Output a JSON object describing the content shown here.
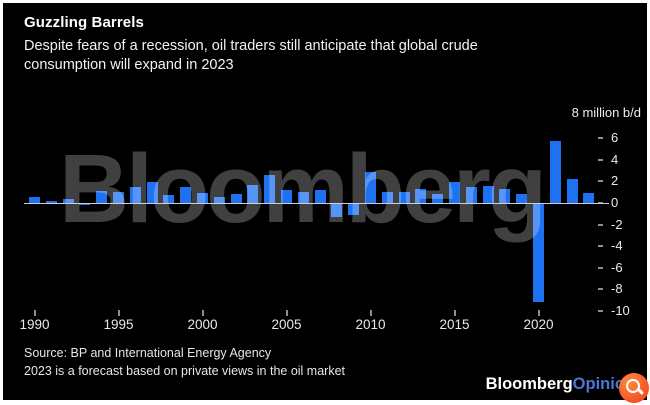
{
  "header": {
    "title": "Guzzling Barrels",
    "subtitle": [
      "Despite fears of a recession, oil traders still anticipate that global crude",
      "consumption will expand in 2023"
    ]
  },
  "chart_data": {
    "type": "bar",
    "title": "Guzzling Barrels",
    "subtitle": "Despite fears of a recession, oil traders still anticipate that global crude consumption will expand in 2023",
    "ylabel": "million b/d",
    "unit_label": "8 million b/d",
    "x": [
      1990,
      1991,
      1992,
      1993,
      1994,
      1995,
      1996,
      1997,
      1998,
      1999,
      2000,
      2001,
      2002,
      2003,
      2004,
      2005,
      2006,
      2007,
      2008,
      2009,
      2010,
      2011,
      2012,
      2013,
      2014,
      2015,
      2016,
      2017,
      2018,
      2019,
      2020,
      2021,
      2022,
      2023
    ],
    "values": [
      0.6,
      0.2,
      0.4,
      -0.1,
      1.1,
      1.0,
      1.5,
      1.9,
      0.7,
      1.5,
      0.9,
      0.6,
      0.8,
      1.7,
      2.6,
      1.2,
      1.0,
      1.2,
      -1.2,
      -1.0,
      2.9,
      1.0,
      1.0,
      1.3,
      0.8,
      1.9,
      1.5,
      1.6,
      1.3,
      0.8,
      -9.1,
      5.7,
      2.2,
      0.9
    ],
    "ylim": [
      -10,
      8
    ],
    "ytick_values": [
      6,
      4,
      2,
      0,
      -2,
      -4,
      -6,
      -8,
      -10
    ],
    "xtick_years": [
      1990,
      1995,
      2000,
      2005,
      2010,
      2015,
      2020
    ],
    "grid": false,
    "legend": "none",
    "bar_color": "#1e72f2",
    "watermark": "Bloomberg"
  },
  "footer": {
    "source": "Source: BP and International Energy Agency",
    "note": "2023 is a forecast based on private views in the oil market",
    "brand": "Bloomberg",
    "brand_suffix": "Opinion"
  },
  "colors": {
    "background": "#000000",
    "bar": "#1e72f2",
    "axis_text": "#e9e9e9",
    "zero_line": "#cfcfcf",
    "brand_opinion": "#4a77d4",
    "badge": "#ef3c1e"
  }
}
